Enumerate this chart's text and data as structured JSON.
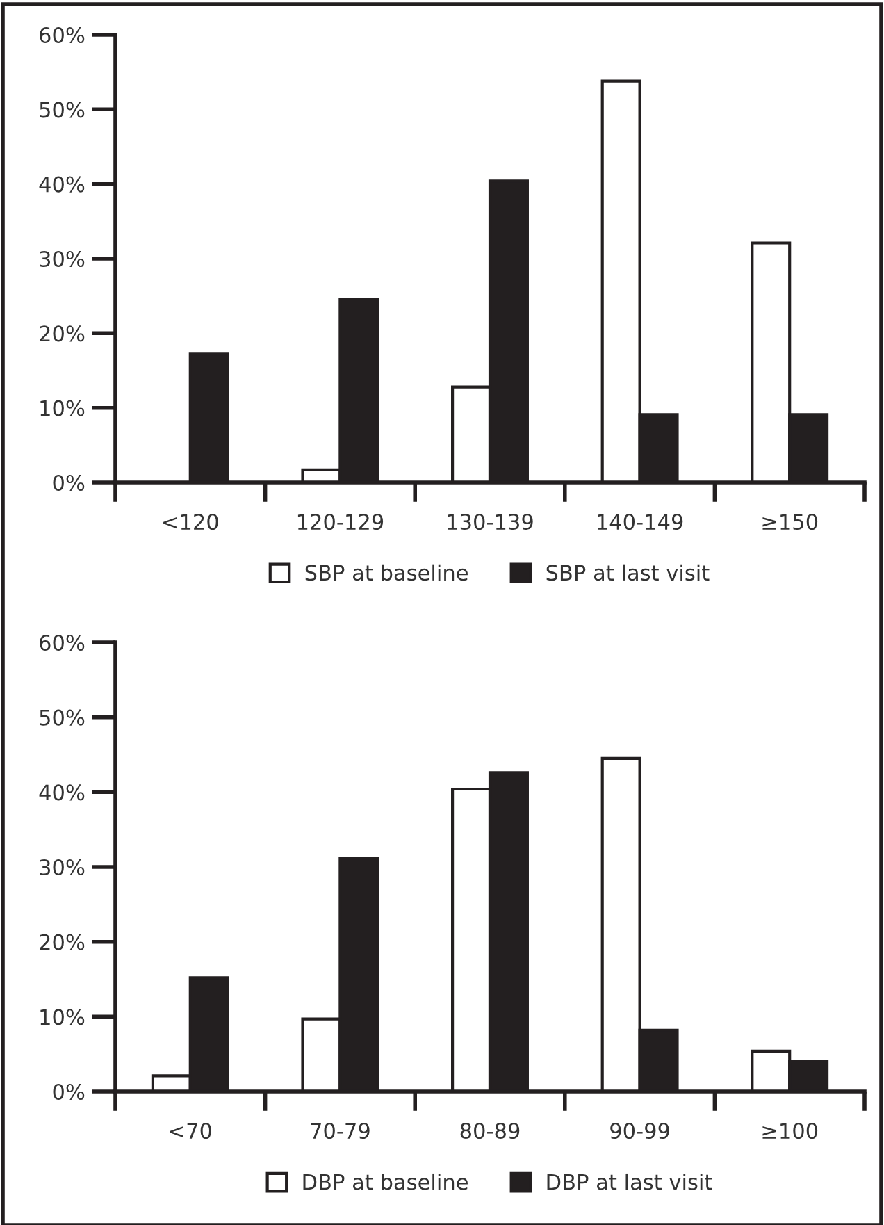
{
  "chart_data": [
    {
      "type": "bar",
      "categories": [
        "<120",
        "120-129",
        "130-139",
        "140-149",
        "≥150"
      ],
      "series": [
        {
          "name": "SBP at baseline",
          "color": "#ffffff",
          "values": [
            null,
            1.7,
            12.8,
            53.8,
            32.1
          ]
        },
        {
          "name": "SBP at last visit",
          "color": "#231f20",
          "values": [
            17.2,
            24.6,
            40.4,
            9.1,
            9.1
          ]
        }
      ],
      "ylim": [
        0,
        60
      ],
      "yticks": [
        {
          "value": 0,
          "label": "0%"
        },
        {
          "value": 10,
          "label": "10%"
        },
        {
          "value": 20,
          "label": "20%"
        },
        {
          "value": 30,
          "label": "30%"
        },
        {
          "value": 40,
          "label": "40%"
        },
        {
          "value": 50,
          "label": "50%"
        },
        {
          "value": 60,
          "label": "60%"
        }
      ],
      "legend": "bottom",
      "grid": false
    },
    {
      "type": "bar",
      "categories": [
        "<70",
        "70-79",
        "80-89",
        "90-99",
        "≥100"
      ],
      "series": [
        {
          "name": "DBP at baseline",
          "color": "#ffffff",
          "values": [
            2.1,
            9.7,
            40.4,
            44.5,
            5.4
          ]
        },
        {
          "name": "DBP at last visit",
          "color": "#231f20",
          "values": [
            15.2,
            31.2,
            42.6,
            8.2,
            4.0
          ]
        }
      ],
      "ylim": [
        0,
        60
      ],
      "yticks": [
        {
          "value": 0,
          "label": "0%"
        },
        {
          "value": 10,
          "label": "10%"
        },
        {
          "value": 20,
          "label": "20%"
        },
        {
          "value": 30,
          "label": "30%"
        },
        {
          "value": 40,
          "label": "40%"
        },
        {
          "value": 50,
          "label": "50%"
        },
        {
          "value": 60,
          "label": "60%"
        }
      ],
      "legend": "bottom",
      "grid": false
    }
  ]
}
